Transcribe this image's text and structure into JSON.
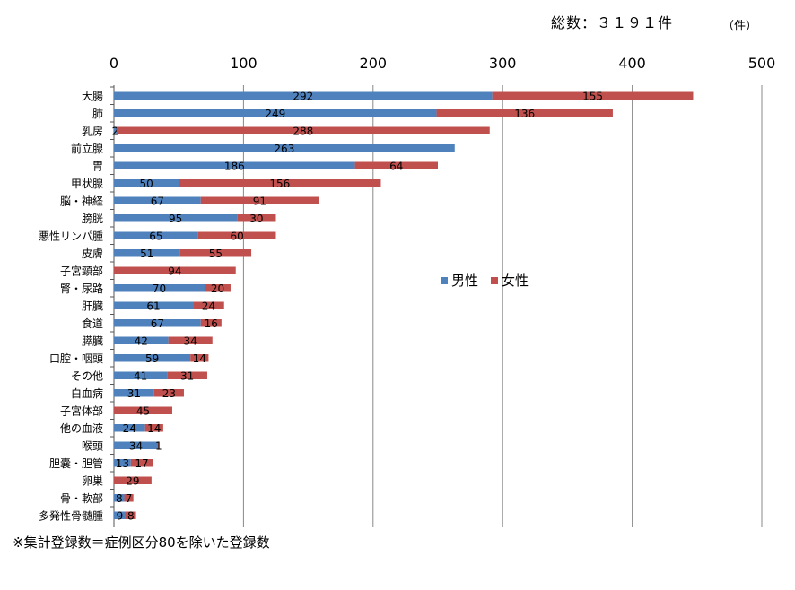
{
  "header": {
    "total_label": "総数：３１９１件",
    "unit_label": "（件）"
  },
  "footer": {
    "note": "※集計登録数＝症例区分80を除いた登録数"
  },
  "colors": {
    "male": "#4f81bd",
    "female": "#c0504d",
    "grid": "#888888"
  },
  "chart_data": {
    "type": "bar",
    "orientation": "horizontal",
    "stacked": true,
    "title": "",
    "xlabel": "",
    "ylabel": "",
    "xlim": [
      0,
      500
    ],
    "xticks": [
      0,
      100,
      200,
      300,
      400,
      500
    ],
    "grid": true,
    "legend_position": "right-center",
    "categories": [
      "大腸",
      "肺",
      "乳房",
      "前立腺",
      "胃",
      "甲状腺",
      "脳・神経",
      "膀胱",
      "悪性リンパ腫",
      "皮膚",
      "子宮頸部",
      "腎・尿路",
      "肝臓",
      "食道",
      "膵臓",
      "口腔・咽頭",
      "その他",
      "白血病",
      "子宮体部",
      "他の血液",
      "喉頭",
      "胆嚢・胆管",
      "卵巣",
      "骨・軟部",
      "多発性骨髄腫"
    ],
    "series": [
      {
        "name": "男性",
        "values": [
          292,
          249,
          2,
          263,
          186,
          50,
          67,
          95,
          65,
          51,
          0,
          70,
          61,
          67,
          42,
          59,
          41,
          31,
          0,
          24,
          34,
          13,
          0,
          8,
          9
        ]
      },
      {
        "name": "女性",
        "values": [
          155,
          136,
          288,
          0,
          64,
          156,
          91,
          30,
          60,
          55,
          94,
          20,
          24,
          16,
          34,
          14,
          31,
          23,
          45,
          14,
          1,
          17,
          29,
          7,
          8
        ]
      }
    ]
  }
}
